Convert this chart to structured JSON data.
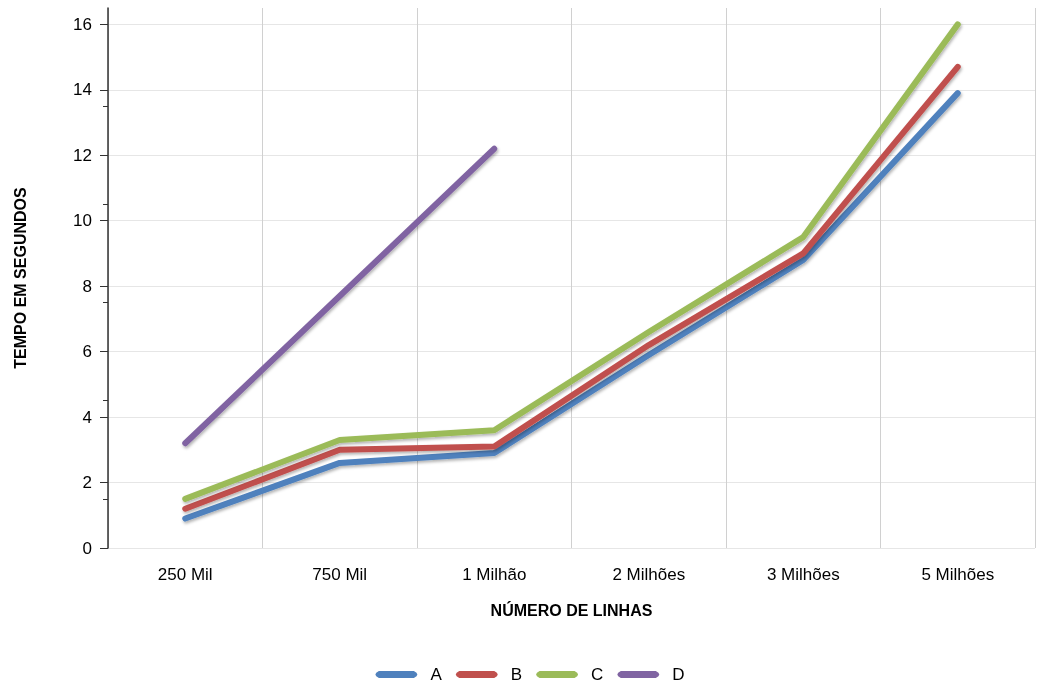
{
  "chart_data": {
    "type": "line",
    "xlabel": "NÚMERO DE LINHAS",
    "ylabel": "TEMPO EM SEGUNDOS",
    "categories": [
      "250 Mil",
      "750 Mil",
      "1 Milhão",
      "2 Milhões",
      "3 Milhões",
      "5 Milhões"
    ],
    "series": [
      {
        "name": "A",
        "color": "#4f81bd",
        "values": [
          0.9,
          2.6,
          2.9,
          5.9,
          8.8,
          13.9
        ]
      },
      {
        "name": "B",
        "color": "#c0504d",
        "values": [
          1.2,
          3.0,
          3.1,
          6.2,
          9.0,
          14.7
        ]
      },
      {
        "name": "C",
        "color": "#9bbb59",
        "values": [
          1.5,
          3.3,
          3.6,
          6.6,
          9.5,
          16.0
        ]
      },
      {
        "name": "D",
        "color": "#8064a2",
        "values": [
          3.2,
          7.7,
          12.2,
          null,
          null,
          null
        ]
      }
    ],
    "ylim": [
      0,
      16.5
    ],
    "yticks": [
      0,
      2,
      4,
      6,
      8,
      10,
      12,
      14,
      16
    ],
    "grid": true,
    "legend": "bottom",
    "marker": "none",
    "line_style": "solid"
  }
}
